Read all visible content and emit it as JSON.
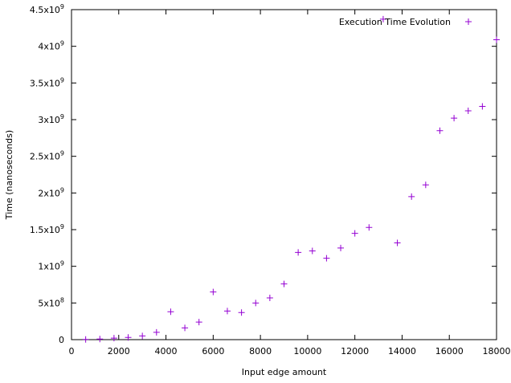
{
  "chart_data": {
    "type": "scatter",
    "xlabel": "Input edge amount",
    "ylabel": "Time (nanoseconds)",
    "xlim": [
      0,
      18000
    ],
    "ylim": [
      0,
      4500000000
    ],
    "grid": false,
    "legend_position": "top-right",
    "x_ticks": [
      {
        "value": 0,
        "label": "0"
      },
      {
        "value": 2000,
        "label": "2000"
      },
      {
        "value": 4000,
        "label": "4000"
      },
      {
        "value": 6000,
        "label": "6000"
      },
      {
        "value": 8000,
        "label": "8000"
      },
      {
        "value": 10000,
        "label": "10000"
      },
      {
        "value": 12000,
        "label": "12000"
      },
      {
        "value": 14000,
        "label": "14000"
      },
      {
        "value": 16000,
        "label": "16000"
      },
      {
        "value": 18000,
        "label": "18000"
      }
    ],
    "y_ticks": [
      {
        "value": 0,
        "mantissa": "0",
        "exponent": ""
      },
      {
        "value": 500000000,
        "mantissa": "5x10",
        "exponent": "8"
      },
      {
        "value": 1000000000,
        "mantissa": "1x10",
        "exponent": "9"
      },
      {
        "value": 1500000000,
        "mantissa": "1.5x10",
        "exponent": "9"
      },
      {
        "value": 2000000000,
        "mantissa": "2x10",
        "exponent": "9"
      },
      {
        "value": 2500000000,
        "mantissa": "2.5x10",
        "exponent": "9"
      },
      {
        "value": 3000000000,
        "mantissa": "3x10",
        "exponent": "9"
      },
      {
        "value": 3500000000,
        "mantissa": "3.5x10",
        "exponent": "9"
      },
      {
        "value": 4000000000,
        "mantissa": "4x10",
        "exponent": "9"
      },
      {
        "value": 4500000000,
        "mantissa": "4.5x10",
        "exponent": "9"
      }
    ],
    "series": [
      {
        "name": "Execution Time Evolution",
        "color": "#9400d3",
        "marker": "plus",
        "points": [
          {
            "x": 600,
            "y": 3000000
          },
          {
            "x": 1200,
            "y": 8000000
          },
          {
            "x": 1800,
            "y": 20000000
          },
          {
            "x": 2400,
            "y": 30000000
          },
          {
            "x": 3000,
            "y": 50000000
          },
          {
            "x": 3600,
            "y": 100000000
          },
          {
            "x": 4200,
            "y": 380000000
          },
          {
            "x": 4800,
            "y": 160000000
          },
          {
            "x": 5400,
            "y": 240000000
          },
          {
            "x": 6000,
            "y": 650000000
          },
          {
            "x": 6600,
            "y": 390000000
          },
          {
            "x": 7200,
            "y": 370000000
          },
          {
            "x": 7800,
            "y": 500000000
          },
          {
            "x": 8400,
            "y": 570000000
          },
          {
            "x": 9000,
            "y": 760000000
          },
          {
            "x": 9600,
            "y": 1190000000
          },
          {
            "x": 10200,
            "y": 1210000000
          },
          {
            "x": 10800,
            "y": 1110000000
          },
          {
            "x": 11400,
            "y": 1250000000
          },
          {
            "x": 12000,
            "y": 1450000000
          },
          {
            "x": 12600,
            "y": 1530000000
          },
          {
            "x": 13200,
            "y": 4370000000
          },
          {
            "x": 13800,
            "y": 1320000000
          },
          {
            "x": 14400,
            "y": 1950000000
          },
          {
            "x": 15000,
            "y": 2110000000
          },
          {
            "x": 15600,
            "y": 2850000000
          },
          {
            "x": 16200,
            "y": 3020000000
          },
          {
            "x": 16800,
            "y": 3120000000
          },
          {
            "x": 17400,
            "y": 3180000000
          },
          {
            "x": 18000,
            "y": 4090000000
          }
        ]
      }
    ]
  }
}
